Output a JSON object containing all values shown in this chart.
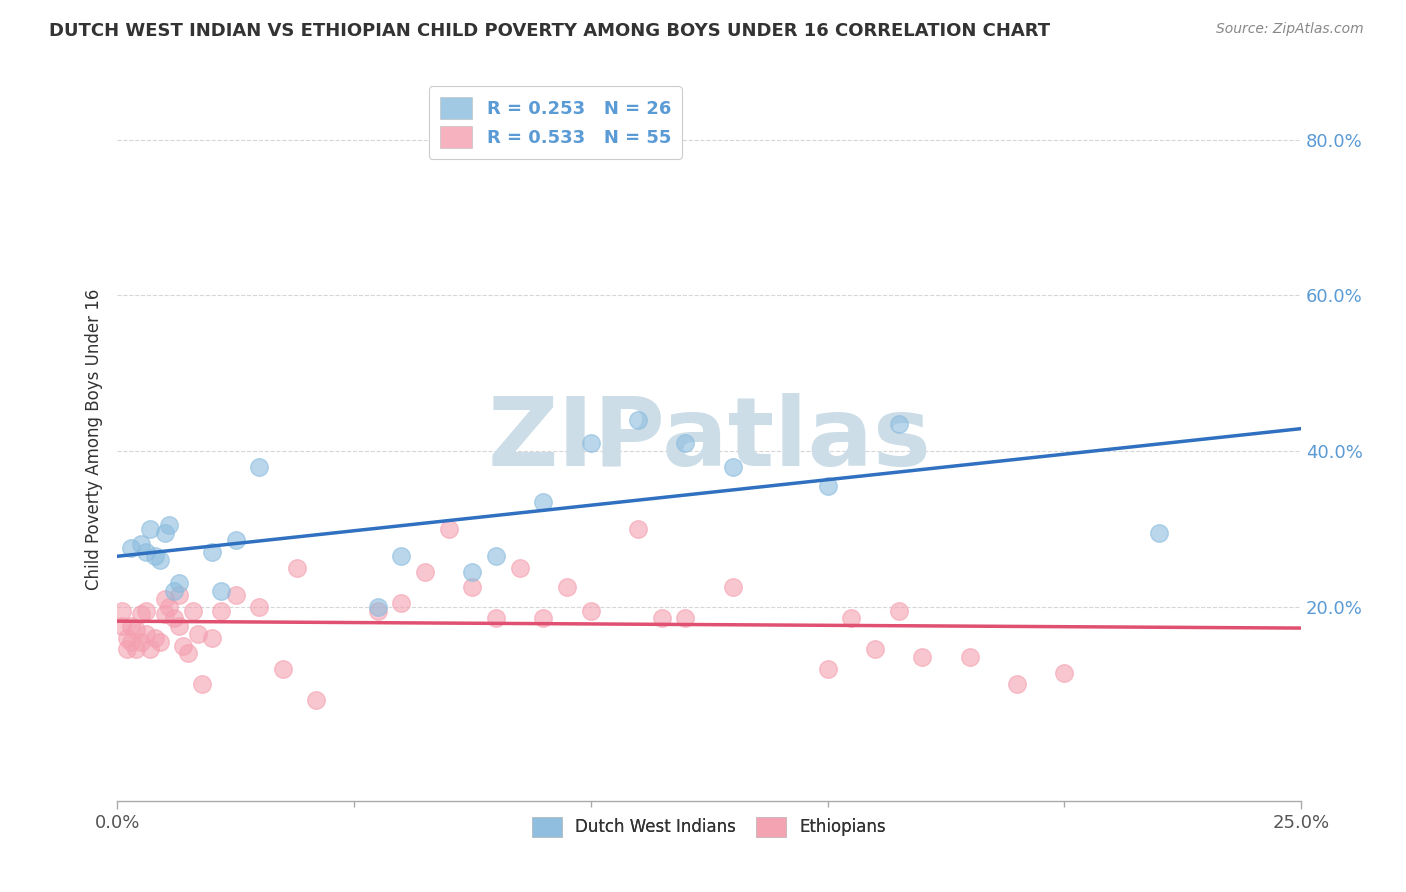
{
  "title": "DUTCH WEST INDIAN VS ETHIOPIAN CHILD POVERTY AMONG BOYS UNDER 16 CORRELATION CHART",
  "source": "Source: ZipAtlas.com",
  "ylabel": "Child Poverty Among Boys Under 16",
  "ytick_labels": [
    "20.0%",
    "40.0%",
    "60.0%",
    "80.0%"
  ],
  "ytick_values": [
    0.2,
    0.4,
    0.6,
    0.8
  ],
  "xlim": [
    0.0,
    0.25
  ],
  "ylim": [
    -0.05,
    0.88
  ],
  "legend_entries": [
    {
      "label": "R = 0.253   N = 26"
    },
    {
      "label": "R = 0.533   N = 55"
    }
  ],
  "legend_label_bottom": [
    "Dutch West Indians",
    "Ethiopians"
  ],
  "blue_scatter_color": "#8bbcde",
  "pink_scatter_color": "#f4a0b0",
  "blue_line_color": "#3070c0",
  "pink_line_color": "#e05070",
  "watermark": "ZIPatlas",
  "watermark_color": "#ccdde8",
  "grid_color": "#cccccc",
  "background_color": "#ffffff",
  "dutch_x": [
    0.003,
    0.005,
    0.006,
    0.007,
    0.008,
    0.009,
    0.01,
    0.011,
    0.012,
    0.013,
    0.02,
    0.022,
    0.025,
    0.03,
    0.055,
    0.06,
    0.075,
    0.08,
    0.09,
    0.1,
    0.11,
    0.12,
    0.13,
    0.15,
    0.165,
    0.22
  ],
  "dutch_y": [
    0.275,
    0.28,
    0.27,
    0.3,
    0.265,
    0.26,
    0.295,
    0.305,
    0.22,
    0.23,
    0.27,
    0.22,
    0.285,
    0.38,
    0.2,
    0.265,
    0.245,
    0.265,
    0.335,
    0.41,
    0.44,
    0.41,
    0.38,
    0.355,
    0.435,
    0.295
  ],
  "ethiopian_x": [
    0.001,
    0.001,
    0.002,
    0.002,
    0.003,
    0.003,
    0.004,
    0.004,
    0.005,
    0.005,
    0.006,
    0.006,
    0.007,
    0.008,
    0.009,
    0.01,
    0.01,
    0.011,
    0.012,
    0.013,
    0.013,
    0.014,
    0.015,
    0.016,
    0.017,
    0.018,
    0.02,
    0.022,
    0.025,
    0.03,
    0.035,
    0.038,
    0.042,
    0.055,
    0.06,
    0.065,
    0.07,
    0.075,
    0.08,
    0.085,
    0.09,
    0.095,
    0.1,
    0.11,
    0.115,
    0.12,
    0.13,
    0.15,
    0.155,
    0.16,
    0.165,
    0.17,
    0.18,
    0.19,
    0.2
  ],
  "ethiopian_y": [
    0.195,
    0.175,
    0.16,
    0.145,
    0.155,
    0.175,
    0.17,
    0.145,
    0.19,
    0.155,
    0.195,
    0.165,
    0.145,
    0.16,
    0.155,
    0.21,
    0.19,
    0.2,
    0.185,
    0.175,
    0.215,
    0.15,
    0.14,
    0.195,
    0.165,
    0.1,
    0.16,
    0.195,
    0.215,
    0.2,
    0.12,
    0.25,
    0.08,
    0.195,
    0.205,
    0.245,
    0.3,
    0.225,
    0.185,
    0.25,
    0.185,
    0.225,
    0.195,
    0.3,
    0.185,
    0.185,
    0.225,
    0.12,
    0.185,
    0.145,
    0.195,
    0.135,
    0.135,
    0.1,
    0.115
  ]
}
